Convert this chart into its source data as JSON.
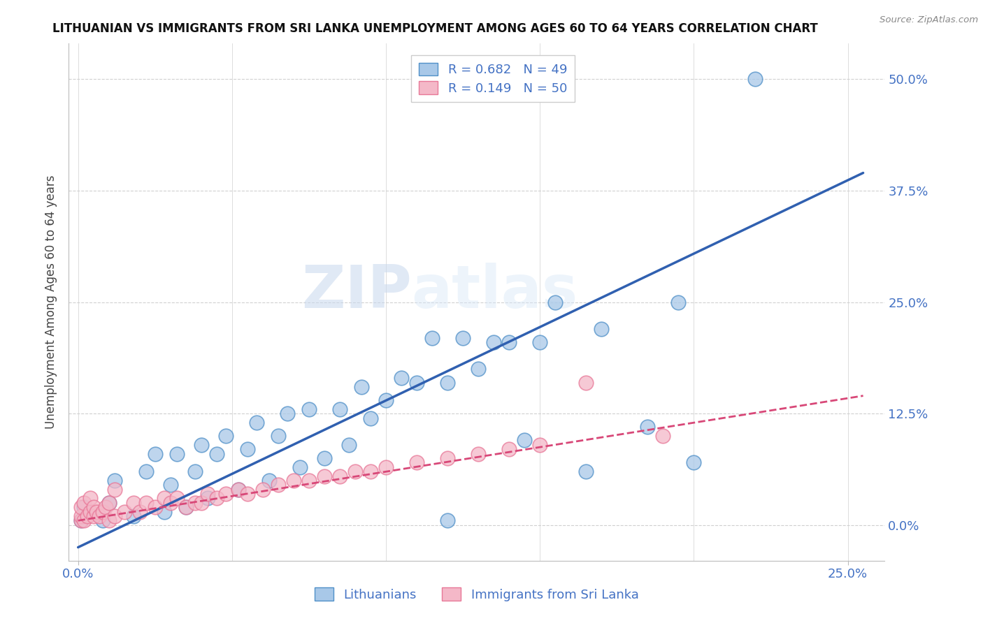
{
  "title": "LITHUANIAN VS IMMIGRANTS FROM SRI LANKA UNEMPLOYMENT AMONG AGES 60 TO 64 YEARS CORRELATION CHART",
  "source": "Source: ZipAtlas.com",
  "ylabel_label": "Unemployment Among Ages 60 to 64 years",
  "ylabel_ticks": [
    "0.0%",
    "12.5%",
    "25.0%",
    "37.5%",
    "50.0%"
  ],
  "ylabel_values": [
    0.0,
    0.125,
    0.25,
    0.375,
    0.5
  ],
  "xlabel_ticks": [
    "0.0%",
    "25.0%"
  ],
  "xlabel_values": [
    0.0,
    0.25
  ],
  "watermark_zip": "ZIP",
  "watermark_atlas": "atlas",
  "legend_blue_label": "R = 0.682   N = 49",
  "legend_pink_label": "R = 0.149   N = 50",
  "legend_label_blue": "Lithuanians",
  "legend_label_pink": "Immigrants from Sri Lanka",
  "blue_fill": "#a8c8e8",
  "pink_fill": "#f4b8c8",
  "blue_edge": "#5090c8",
  "pink_edge": "#e87898",
  "blue_line_color": "#3060b0",
  "pink_line_color": "#d84878",
  "axis_color": "#4472c4",
  "grid_color": "#d0d0d0",
  "blue_scatter_x": [
    0.001,
    0.002,
    0.008,
    0.01,
    0.012,
    0.018,
    0.022,
    0.025,
    0.028,
    0.03,
    0.032,
    0.035,
    0.038,
    0.04,
    0.042,
    0.045,
    0.048,
    0.052,
    0.055,
    0.058,
    0.062,
    0.065,
    0.068,
    0.072,
    0.075,
    0.08,
    0.085,
    0.088,
    0.092,
    0.095,
    0.1,
    0.105,
    0.11,
    0.115,
    0.12,
    0.125,
    0.13,
    0.135,
    0.14,
    0.15,
    0.155,
    0.12,
    0.145,
    0.165,
    0.17,
    0.185,
    0.195,
    0.2,
    0.22
  ],
  "blue_scatter_y": [
    0.005,
    0.02,
    0.005,
    0.025,
    0.05,
    0.01,
    0.06,
    0.08,
    0.015,
    0.045,
    0.08,
    0.02,
    0.06,
    0.09,
    0.03,
    0.08,
    0.1,
    0.04,
    0.085,
    0.115,
    0.05,
    0.1,
    0.125,
    0.065,
    0.13,
    0.075,
    0.13,
    0.09,
    0.155,
    0.12,
    0.14,
    0.165,
    0.16,
    0.21,
    0.16,
    0.21,
    0.175,
    0.205,
    0.205,
    0.205,
    0.25,
    0.005,
    0.095,
    0.06,
    0.22,
    0.11,
    0.25,
    0.07,
    0.5
  ],
  "pink_scatter_x": [
    0.001,
    0.001,
    0.001,
    0.002,
    0.002,
    0.003,
    0.004,
    0.004,
    0.005,
    0.005,
    0.006,
    0.007,
    0.008,
    0.009,
    0.01,
    0.01,
    0.012,
    0.012,
    0.015,
    0.018,
    0.02,
    0.022,
    0.025,
    0.028,
    0.03,
    0.032,
    0.035,
    0.038,
    0.04,
    0.042,
    0.045,
    0.048,
    0.052,
    0.055,
    0.06,
    0.065,
    0.07,
    0.075,
    0.08,
    0.085,
    0.09,
    0.095,
    0.1,
    0.11,
    0.12,
    0.13,
    0.14,
    0.15,
    0.165,
    0.19
  ],
  "pink_scatter_y": [
    0.005,
    0.01,
    0.02,
    0.005,
    0.025,
    0.01,
    0.015,
    0.03,
    0.01,
    0.02,
    0.015,
    0.01,
    0.015,
    0.02,
    0.005,
    0.025,
    0.01,
    0.04,
    0.015,
    0.025,
    0.015,
    0.025,
    0.02,
    0.03,
    0.025,
    0.03,
    0.02,
    0.025,
    0.025,
    0.035,
    0.03,
    0.035,
    0.04,
    0.035,
    0.04,
    0.045,
    0.05,
    0.05,
    0.055,
    0.055,
    0.06,
    0.06,
    0.065,
    0.07,
    0.075,
    0.08,
    0.085,
    0.09,
    0.16,
    0.1
  ],
  "blue_line_x0": 0.0,
  "blue_line_x1": 0.255,
  "blue_line_y0": -0.025,
  "blue_line_y1": 0.395,
  "pink_line_x0": 0.0,
  "pink_line_x1": 0.255,
  "pink_line_y0": 0.005,
  "pink_line_y1": 0.145,
  "xlim_min": -0.003,
  "xlim_max": 0.262,
  "ylim_min": -0.04,
  "ylim_max": 0.54
}
